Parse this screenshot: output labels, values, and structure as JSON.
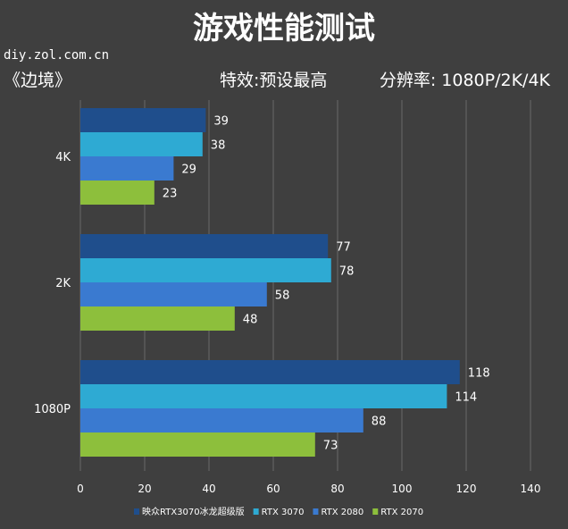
{
  "header": {
    "title": "游戏性能测试",
    "watermark": "diy.zol.com.cn",
    "game": "《边境》",
    "settings": "特效:预设最高",
    "resolutions": "分辨率: 1080P/2K/4K"
  },
  "chart_data": {
    "type": "bar",
    "orientation": "horizontal",
    "categories": [
      "4K",
      "2K",
      "1080P"
    ],
    "series": [
      {
        "name": "映众RTX3070冰龙超级版",
        "values": [
          39,
          77,
          118
        ],
        "color": "#1f4e8c"
      },
      {
        "name": "RTX 3070",
        "values": [
          38,
          78,
          114
        ],
        "color": "#2eaad3"
      },
      {
        "name": "RTX 2080",
        "values": [
          29,
          58,
          88
        ],
        "color": "#3a7ad0"
      },
      {
        "name": "RTX 2070",
        "values": [
          23,
          48,
          73
        ],
        "color": "#8dbf3c"
      }
    ],
    "xlim": [
      0,
      140
    ],
    "xticks": [
      "0",
      "20",
      "40",
      "60",
      "80",
      "100",
      "120",
      "140"
    ],
    "grid": true,
    "legend_position": "bottom"
  }
}
